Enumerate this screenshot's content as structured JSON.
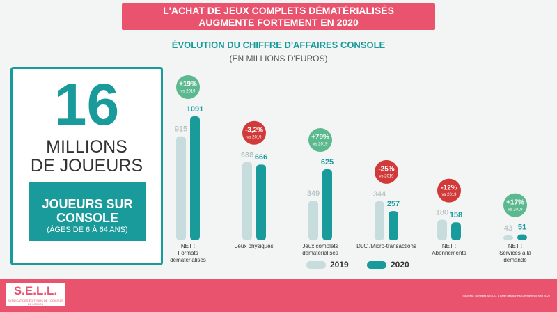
{
  "header": {
    "title": "L'ACHAT DE JEUX COMPLETS DÉMATÉRIALISÉS\nAUGMENTE FORTEMENT EN 2020"
  },
  "panel": {
    "big_number": "16",
    "big_label": "MILLIONS\nDE JOUEURS",
    "box_title": "JOUEURS SUR\nCONSOLE",
    "box_note": "(ÂGES DE 6 À 64 ANS)"
  },
  "chart_data": {
    "type": "bar",
    "title": "ÉVOLUTION DU CHIFFRE D'AFFAIRES CONSOLE",
    "subtitle": "(EN MILLIONS D'EUROS)",
    "categories": [
      "NET :\nFormats\ndématérialisés",
      "Jeux physiques",
      "Jeux complets\ndématérialisés",
      "DLC /Micro-transactions",
      "NET :\nAbonnements",
      "NET :\nServices à la\ndemande"
    ],
    "series": [
      {
        "name": "2019",
        "color": "#c6dcdd",
        "label_color": "#a9b9ba",
        "values": [
          915,
          688,
          349,
          344,
          180,
          43
        ]
      },
      {
        "name": "2020",
        "color": "#1a9b9b",
        "label_color": "#1a9b9b",
        "values": [
          1091,
          666,
          625,
          257,
          158,
          51
        ]
      }
    ],
    "annotations": [
      {
        "text": "+19%",
        "sub": "vs 2019",
        "color": "#5cb88e"
      },
      {
        "text": "-3,2%",
        "sub": "vs 2019",
        "color": "#d23a3a"
      },
      {
        "text": "+79%",
        "sub": "vs 2019",
        "color": "#5cb88e"
      },
      {
        "text": "-25%",
        "sub": "vs 2019",
        "color": "#d23a3a"
      },
      {
        "text": "-12%",
        "sub": "vs 2019",
        "color": "#d23a3a"
      },
      {
        "text": "+17%",
        "sub": "vs 2019",
        "color": "#5cb88e"
      }
    ]
  },
  "footer": {
    "logo": "S.E.L.L.",
    "logo_sub": "SYNDICAT DES ÉDITEURS DE LOGICIELS DE LOISIRS",
    "source": "Sources : Données S.E.L.L. à partir des panels GfK/Newzoo à fin 2020"
  }
}
